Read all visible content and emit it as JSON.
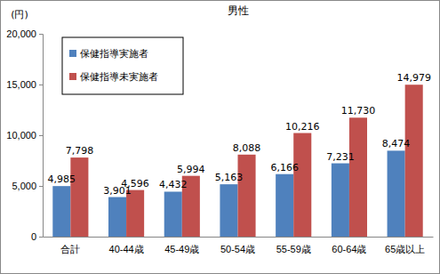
{
  "chart_data": {
    "type": "bar",
    "title": "男性",
    "y_label": "(円)",
    "categories": [
      "合計",
      "40-44歳",
      "45-49歳",
      "50-54歳",
      "55-59歳",
      "60-64歳",
      "65歳以上"
    ],
    "series": [
      {
        "name": "保健指導実施者",
        "color": "#4f81bd",
        "values": [
          4985,
          3901,
          4432,
          5163,
          6166,
          7231,
          8474
        ],
        "value_labels": [
          "4,985",
          "3,901",
          "4,432",
          "5,163",
          "6,166",
          "7,231",
          "8,474"
        ]
      },
      {
        "name": "保健指導未実施者",
        "color": "#c0504d",
        "values": [
          7798,
          4596,
          5994,
          8088,
          10216,
          11730,
          14979
        ],
        "value_labels": [
          "7,798",
          "4,596",
          "5,994",
          "8,088",
          "10,216",
          "11,730",
          "14,979"
        ]
      }
    ],
    "ylim": [
      0,
      20000
    ],
    "yticks": [
      {
        "value": 0,
        "label": "0"
      },
      {
        "value": 5000,
        "label": "5,000"
      },
      {
        "value": 10000,
        "label": "10,000"
      },
      {
        "value": 15000,
        "label": "15,000"
      },
      {
        "value": 20000,
        "label": "20,000"
      }
    ],
    "grid": false,
    "legend": "upper left",
    "data_labels": true
  }
}
